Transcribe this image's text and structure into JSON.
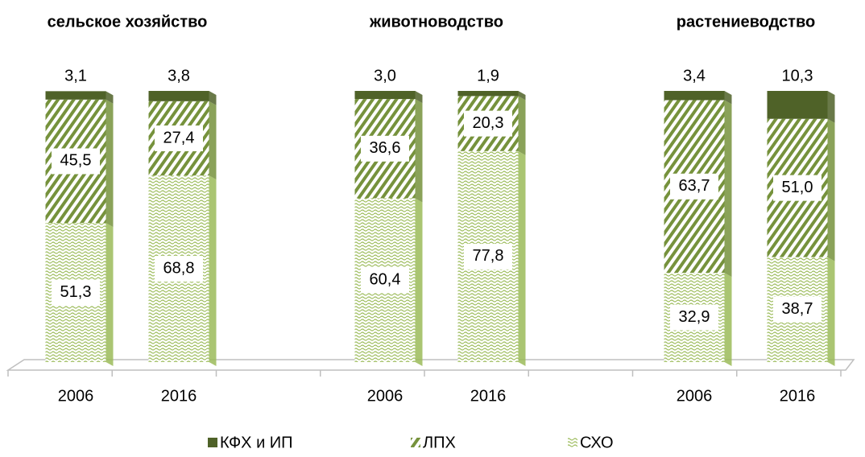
{
  "chart_data": {
    "type": "stacked_bar",
    "group_labels": [
      "сельское хозяйство",
      "животноводство",
      "растениеводство"
    ],
    "categories": [
      "2006",
      "2016",
      null,
      "2006",
      "2016",
      null,
      "2006",
      "2016"
    ],
    "ylim": [
      0,
      100
    ],
    "legend": "bottom",
    "series": [
      {
        "name": "КФХ и ИП",
        "color": "#4f6228",
        "values": [
          3.1,
          3.8,
          null,
          3.0,
          1.9,
          null,
          3.4,
          10.3
        ],
        "value_labels": [
          "3,1",
          "3,8",
          null,
          "3,0",
          "1,9",
          null,
          "3,4",
          "10,3"
        ]
      },
      {
        "name": "ЛПХ",
        "color": "#76923c",
        "values": [
          45.5,
          27.4,
          null,
          36.6,
          20.3,
          null,
          63.7,
          51.0
        ],
        "value_labels": [
          "45,5",
          "27,4",
          null,
          "36,6",
          "20,3",
          null,
          "63,7",
          "51,0"
        ]
      },
      {
        "name": "СХО",
        "color": "#9bbb59",
        "values": [
          51.3,
          68.8,
          null,
          60.4,
          77.8,
          null,
          32.9,
          38.7
        ],
        "value_labels": [
          "51,3",
          "68,8",
          null,
          "60,4",
          "77,8",
          null,
          "32,9",
          "38,7"
        ]
      }
    ]
  }
}
